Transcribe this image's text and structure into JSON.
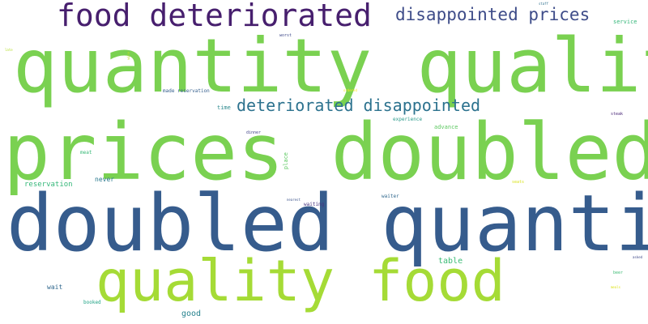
{
  "words": {
    "food_deteriorated": {
      "text": "food deteriorated",
      "color": "#471f6e"
    },
    "disappointed_prices": {
      "text": "disappointed prices",
      "color": "#3e4c89"
    },
    "quantity_quality": {
      "text": "quantity quality",
      "color": "#7ad151"
    },
    "deteriorated_disappointed": {
      "text": "deteriorated disappointed",
      "color": "#2c728e"
    },
    "prices_doubled": {
      "text": "prices doubled",
      "color": "#7ad151"
    },
    "doubled_quantity": {
      "text": "doubled quantity",
      "color": "#365c8d"
    },
    "quality_food": {
      "text": "quality food",
      "color": "#a5db36"
    },
    "time": {
      "text": "time",
      "color": "#2d8a8e"
    },
    "made_reservation": {
      "text": "made reservation",
      "color": "#355f8d"
    },
    "worst": {
      "text": "worst",
      "color": "#3f4a8a"
    },
    "service": {
      "text": "service",
      "color": "#35b779"
    },
    "staff": {
      "text": "staff",
      "color": "#2d6f8e"
    },
    "steak": {
      "text": "steak",
      "color": "#482677"
    },
    "experience": {
      "text": "experience",
      "color": "#2a9a8a"
    },
    "advance": {
      "text": "advance",
      "color": "#5ec962"
    },
    "dinner": {
      "text": "dinner",
      "color": "#414487"
    },
    "meat": {
      "text": "meat",
      "color": "#38b977"
    },
    "never": {
      "text": "never",
      "color": "#2a788e"
    },
    "reservation": {
      "text": "reservation",
      "color": "#35b779"
    },
    "seats": {
      "text": "seats",
      "color": "#d8e219"
    },
    "waiter": {
      "text": "waiter",
      "color": "#31688e"
    },
    "nearest": {
      "text": "nearest",
      "color": "#3b528b"
    },
    "waiting": {
      "text": "waiting",
      "color": "#46327e"
    },
    "table": {
      "text": "table",
      "color": "#3bbb75"
    },
    "asked": {
      "text": "asked",
      "color": "#3e4989"
    },
    "beer": {
      "text": "beer",
      "color": "#3dbc74"
    },
    "wait": {
      "text": "wait",
      "color": "#31688e"
    },
    "meals": {
      "text": "meals",
      "color": "#dde318"
    },
    "booked": {
      "text": "booked",
      "color": "#20a386"
    },
    "good": {
      "text": "good",
      "color": "#26828e"
    },
    "late": {
      "text": "late",
      "color": "#b5de2b"
    },
    "ordered": {
      "text": "ordered",
      "color": "#fde725"
    },
    "place": {
      "text": "place",
      "color": "#5ec962"
    },
    "wine": {
      "text": "wine",
      "color": "#c2df23"
    }
  }
}
